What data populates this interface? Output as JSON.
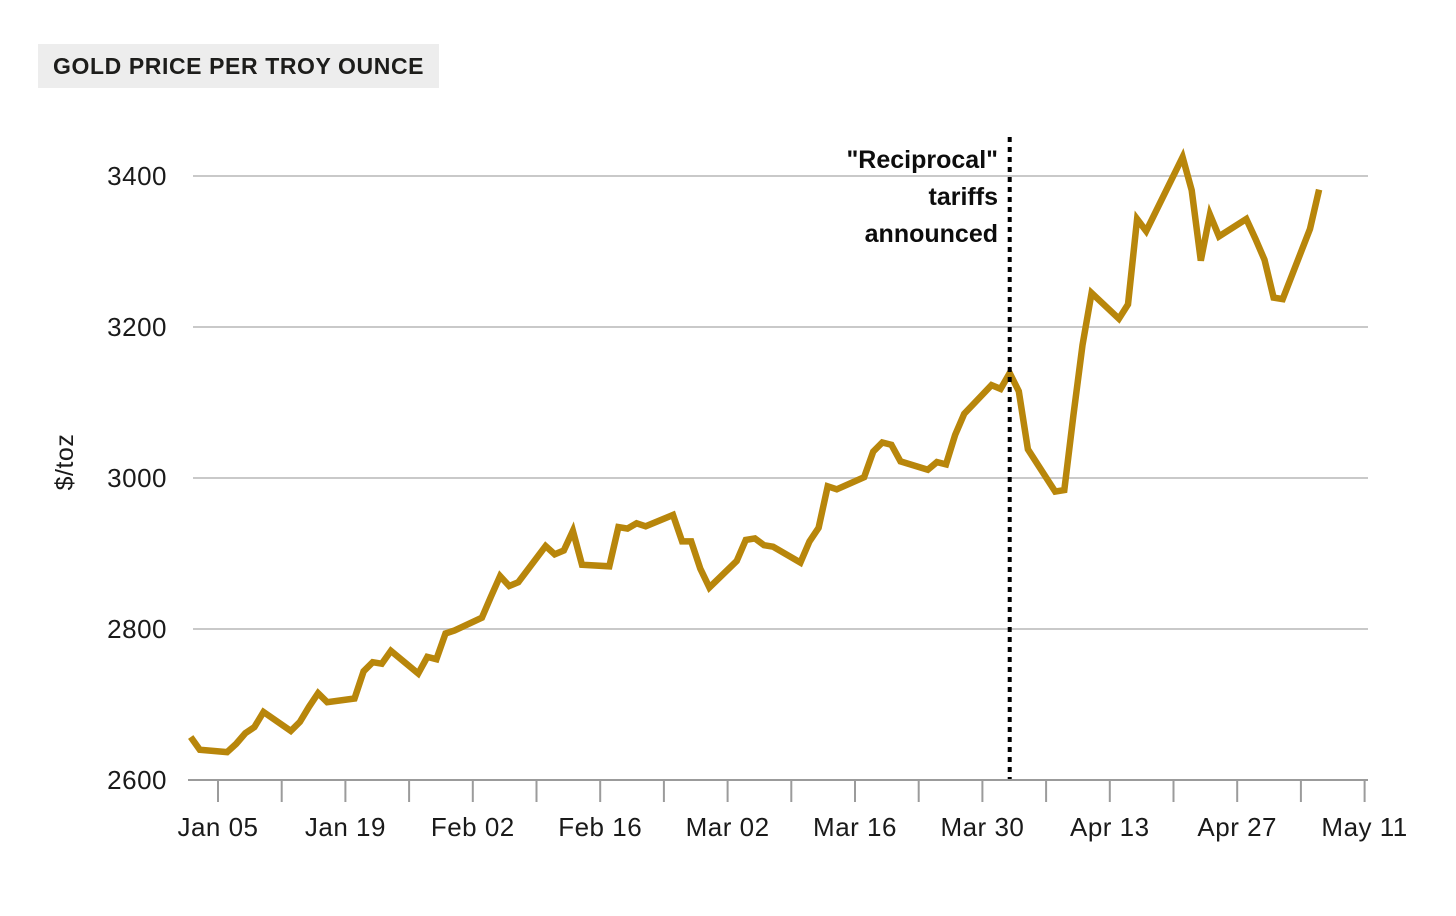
{
  "header": {
    "title": "GOLD PRICE PER TROY OUNCE"
  },
  "annotation": {
    "lines": [
      "\"Reciprocal\"",
      "tariffs",
      "announced"
    ],
    "event_date": "2025-04-02"
  },
  "chart_data": {
    "type": "line",
    "title": "GOLD PRICE PER TROY OUNCE",
    "xlabel": "",
    "ylabel": "$/toz",
    "ylim": [
      2600,
      3400
    ],
    "yticks": [
      2600,
      2800,
      3000,
      3200,
      3400
    ],
    "grid": "horizontal",
    "legend": "none",
    "line_color": "#b8860b",
    "grid_color": "#c9c9c9",
    "axis_color": "#9b9b9b",
    "event_line": {
      "x": "2025-04-02",
      "style": "dotted",
      "color": "#000000",
      "label": "\"Reciprocal\" tariffs announced"
    },
    "xticks": [
      {
        "date": "2025-01-05",
        "label": "Jan 05"
      },
      {
        "date": "2025-01-12",
        "label": ""
      },
      {
        "date": "2025-01-19",
        "label": "Jan 19"
      },
      {
        "date": "2025-01-26",
        "label": ""
      },
      {
        "date": "2025-02-02",
        "label": "Feb 02"
      },
      {
        "date": "2025-02-09",
        "label": ""
      },
      {
        "date": "2025-02-16",
        "label": "Feb 16"
      },
      {
        "date": "2025-02-23",
        "label": ""
      },
      {
        "date": "2025-03-02",
        "label": "Mar 02"
      },
      {
        "date": "2025-03-09",
        "label": ""
      },
      {
        "date": "2025-03-16",
        "label": "Mar 16"
      },
      {
        "date": "2025-03-23",
        "label": ""
      },
      {
        "date": "2025-03-30",
        "label": "Mar 30"
      },
      {
        "date": "2025-04-06",
        "label": ""
      },
      {
        "date": "2025-04-13",
        "label": "Apr 13"
      },
      {
        "date": "2025-04-20",
        "label": ""
      },
      {
        "date": "2025-04-27",
        "label": "Apr 27"
      },
      {
        "date": "2025-05-04",
        "label": ""
      },
      {
        "date": "2025-05-11",
        "label": "May 11"
      }
    ],
    "series": [
      {
        "name": "Gold price",
        "points": [
          [
            "2025-01-02",
            2657
          ],
          [
            "2025-01-03",
            2640
          ],
          [
            "2025-01-06",
            2637
          ],
          [
            "2025-01-07",
            2648
          ],
          [
            "2025-01-08",
            2662
          ],
          [
            "2025-01-09",
            2670
          ],
          [
            "2025-01-10",
            2690
          ],
          [
            "2025-01-13",
            2665
          ],
          [
            "2025-01-14",
            2677
          ],
          [
            "2025-01-15",
            2697
          ],
          [
            "2025-01-16",
            2715
          ],
          [
            "2025-01-17",
            2703
          ],
          [
            "2025-01-20",
            2708
          ],
          [
            "2025-01-21",
            2744
          ],
          [
            "2025-01-22",
            2756
          ],
          [
            "2025-01-23",
            2754
          ],
          [
            "2025-01-24",
            2771
          ],
          [
            "2025-01-27",
            2741
          ],
          [
            "2025-01-28",
            2763
          ],
          [
            "2025-01-29",
            2760
          ],
          [
            "2025-01-30",
            2794
          ],
          [
            "2025-01-31",
            2798
          ],
          [
            "2025-02-03",
            2815
          ],
          [
            "2025-02-04",
            2843
          ],
          [
            "2025-02-05",
            2870
          ],
          [
            "2025-02-06",
            2857
          ],
          [
            "2025-02-07",
            2862
          ],
          [
            "2025-02-10",
            2910
          ],
          [
            "2025-02-11",
            2899
          ],
          [
            "2025-02-12",
            2904
          ],
          [
            "2025-02-13",
            2930
          ],
          [
            "2025-02-14",
            2885
          ],
          [
            "2025-02-17",
            2883
          ],
          [
            "2025-02-18",
            2935
          ],
          [
            "2025-02-19",
            2933
          ],
          [
            "2025-02-20",
            2940
          ],
          [
            "2025-02-21",
            2936
          ],
          [
            "2025-02-24",
            2951
          ],
          [
            "2025-02-25",
            2916
          ],
          [
            "2025-02-26",
            2916
          ],
          [
            "2025-02-27",
            2880
          ],
          [
            "2025-02-28",
            2855
          ],
          [
            "2025-03-03",
            2890
          ],
          [
            "2025-03-04",
            2918
          ],
          [
            "2025-03-05",
            2920
          ],
          [
            "2025-03-06",
            2911
          ],
          [
            "2025-03-07",
            2909
          ],
          [
            "2025-03-10",
            2888
          ],
          [
            "2025-03-11",
            2916
          ],
          [
            "2025-03-12",
            2934
          ],
          [
            "2025-03-13",
            2989
          ],
          [
            "2025-03-14",
            2985
          ],
          [
            "2025-03-17",
            3001
          ],
          [
            "2025-03-18",
            3035
          ],
          [
            "2025-03-19",
            3047
          ],
          [
            "2025-03-20",
            3044
          ],
          [
            "2025-03-21",
            3022
          ],
          [
            "2025-03-24",
            3011
          ],
          [
            "2025-03-25",
            3021
          ],
          [
            "2025-03-26",
            3018
          ],
          [
            "2025-03-27",
            3057
          ],
          [
            "2025-03-28",
            3085
          ],
          [
            "2025-03-31",
            3123
          ],
          [
            "2025-04-01",
            3118
          ],
          [
            "2025-04-02",
            3139
          ],
          [
            "2025-04-03",
            3115
          ],
          [
            "2025-04-04",
            3038
          ],
          [
            "2025-04-07",
            2982
          ],
          [
            "2025-04-08",
            2984
          ],
          [
            "2025-04-09",
            3083
          ],
          [
            "2025-04-10",
            3176
          ],
          [
            "2025-04-11",
            3245
          ],
          [
            "2025-04-14",
            3211
          ],
          [
            "2025-04-15",
            3230
          ],
          [
            "2025-04-16",
            3343
          ],
          [
            "2025-04-17",
            3327
          ],
          [
            "2025-04-21",
            3425
          ],
          [
            "2025-04-22",
            3381
          ],
          [
            "2025-04-23",
            3288
          ],
          [
            "2025-04-24",
            3349
          ],
          [
            "2025-04-25",
            3320
          ],
          [
            "2025-04-28",
            3343
          ],
          [
            "2025-04-29",
            3317
          ],
          [
            "2025-04-30",
            3289
          ],
          [
            "2025-05-01",
            3239
          ],
          [
            "2025-05-02",
            3237
          ],
          [
            "2025-05-05",
            3330
          ],
          [
            "2025-05-06",
            3382
          ]
        ]
      }
    ]
  }
}
